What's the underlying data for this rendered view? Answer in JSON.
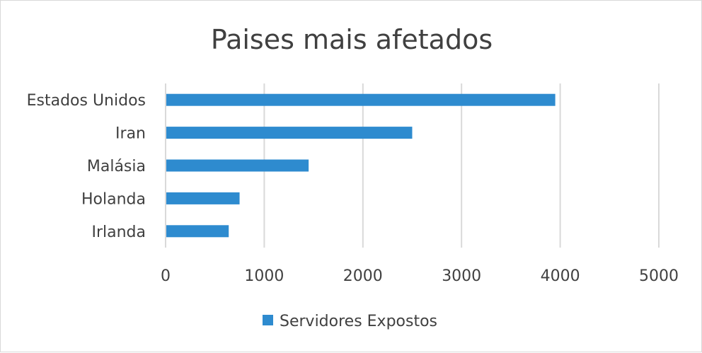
{
  "chart_data": {
    "type": "bar",
    "orientation": "horizontal",
    "title": "Paises mais afetados",
    "categories": [
      "Estados Unidos",
      "Iran",
      "Malásia",
      "Holanda",
      "Irlanda"
    ],
    "series": [
      {
        "name": "Servidores Expostos",
        "values": [
          3950,
          2500,
          1450,
          750,
          640
        ],
        "color": "#2e8bcf"
      }
    ],
    "xlim": [
      0,
      5000
    ],
    "xticks": [
      "0",
      "1000",
      "2000",
      "3000",
      "4000",
      "5000"
    ],
    "xtick_values": [
      0,
      1000,
      2000,
      3000,
      4000,
      5000
    ],
    "grid": "vertical",
    "legend_position": "bottom",
    "colors": {
      "grid": "#d9d9d9",
      "text": "#404040",
      "border": "#d9d9d9"
    }
  }
}
